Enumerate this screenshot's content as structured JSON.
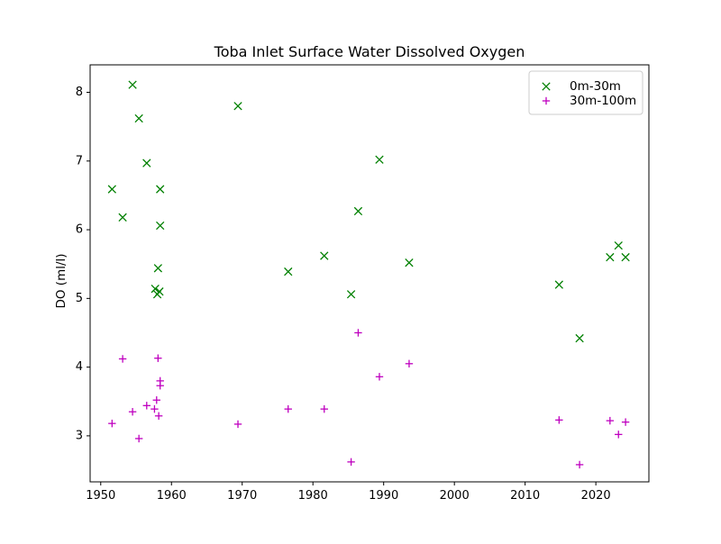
{
  "chart_data": {
    "type": "scatter",
    "title": "Toba Inlet Surface Water Dissolved Oxygen",
    "xlabel": "",
    "ylabel": "DO (ml/l)",
    "xlim": [
      1948.5,
      2027.5
    ],
    "ylim": [
      2.33,
      8.4
    ],
    "xticks": [
      1950,
      1960,
      1970,
      1980,
      1990,
      2000,
      2010,
      2020
    ],
    "xtick_labels": [
      "1950",
      "1960",
      "1970",
      "1980",
      "1990",
      "2000",
      "2010",
      "2020"
    ],
    "yticks": [
      3,
      4,
      5,
      6,
      7,
      8
    ],
    "ytick_labels": [
      "3",
      "4",
      "5",
      "6",
      "7",
      "8"
    ],
    "grid": false,
    "legend_position": "upper right",
    "series": [
      {
        "name": "0m-30m",
        "marker": "x",
        "color": "#008000",
        "points": [
          {
            "x": 1951.6,
            "y": 6.59
          },
          {
            "x": 1953.1,
            "y": 6.18
          },
          {
            "x": 1954.5,
            "y": 8.11
          },
          {
            "x": 1955.4,
            "y": 7.62
          },
          {
            "x": 1956.5,
            "y": 6.97
          },
          {
            "x": 1957.7,
            "y": 5.14
          },
          {
            "x": 1958.0,
            "y": 5.06
          },
          {
            "x": 1958.1,
            "y": 5.44
          },
          {
            "x": 1958.3,
            "y": 5.1
          },
          {
            "x": 1958.4,
            "y": 6.59
          },
          {
            "x": 1958.4,
            "y": 6.06
          },
          {
            "x": 1969.4,
            "y": 7.8
          },
          {
            "x": 1976.5,
            "y": 5.39
          },
          {
            "x": 1981.6,
            "y": 5.62
          },
          {
            "x": 1985.4,
            "y": 5.06
          },
          {
            "x": 1986.4,
            "y": 6.27
          },
          {
            "x": 1989.4,
            "y": 7.02
          },
          {
            "x": 1993.6,
            "y": 5.52
          },
          {
            "x": 2014.8,
            "y": 5.2
          },
          {
            "x": 2017.7,
            "y": 4.42
          },
          {
            "x": 2022.0,
            "y": 5.6
          },
          {
            "x": 2023.2,
            "y": 5.77
          },
          {
            "x": 2024.2,
            "y": 5.6
          }
        ]
      },
      {
        "name": "30m-100m",
        "marker": "+",
        "color": "#bf00bf",
        "points": [
          {
            "x": 1951.6,
            "y": 3.18
          },
          {
            "x": 1953.1,
            "y": 4.12
          },
          {
            "x": 1954.5,
            "y": 3.35
          },
          {
            "x": 1955.4,
            "y": 2.96
          },
          {
            "x": 1956.5,
            "y": 3.44
          },
          {
            "x": 1957.6,
            "y": 3.39
          },
          {
            "x": 1957.9,
            "y": 3.52
          },
          {
            "x": 1958.1,
            "y": 4.13
          },
          {
            "x": 1958.2,
            "y": 3.29
          },
          {
            "x": 1958.4,
            "y": 3.8
          },
          {
            "x": 1958.4,
            "y": 3.73
          },
          {
            "x": 1969.4,
            "y": 3.17
          },
          {
            "x": 1976.5,
            "y": 3.39
          },
          {
            "x": 1981.6,
            "y": 3.39
          },
          {
            "x": 1985.4,
            "y": 2.62
          },
          {
            "x": 1986.4,
            "y": 4.5
          },
          {
            "x": 1989.4,
            "y": 3.86
          },
          {
            "x": 1993.6,
            "y": 4.05
          },
          {
            "x": 2014.8,
            "y": 3.23
          },
          {
            "x": 2017.7,
            "y": 2.58
          },
          {
            "x": 2022.0,
            "y": 3.22
          },
          {
            "x": 2023.2,
            "y": 3.02
          },
          {
            "x": 2024.2,
            "y": 3.2
          }
        ]
      }
    ]
  }
}
